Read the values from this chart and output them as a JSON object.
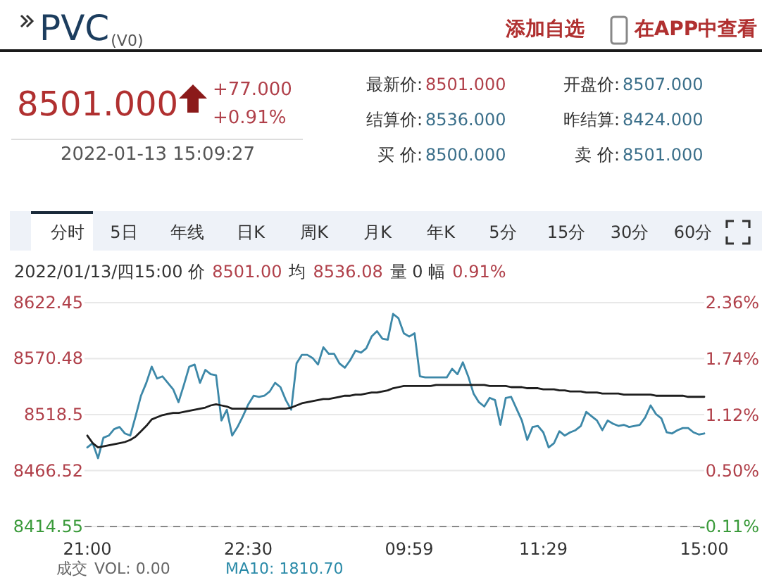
{
  "chart_data": {
    "type": "line",
    "title": "PVC",
    "subtitle": "(V0)",
    "annotations": [
      "添加自选",
      "在APP中查看",
      "8501.000",
      "+77.000",
      "+0.91%",
      "2022-01-13 15:09:27",
      "最新价:",
      "8501.000",
      "结算价:",
      "8536.000",
      "买 价:",
      "8500.000",
      "开盘价:",
      "8507.000",
      "昨结算:",
      "8424.000",
      "卖 价:",
      "8501.000",
      "分时",
      "5日",
      "年线",
      "日K",
      "周K",
      "月K",
      "年K",
      "5分",
      "15分",
      "30分",
      "60分",
      "2022/01/13/四15:00 价",
      "8501.00",
      "均",
      "8536.08",
      "量 0 幅",
      "0.91%",
      "成交",
      "VOL: 0.00",
      "MA10: 1810.70"
    ],
    "categories": [
      "21:00",
      null,
      null,
      null,
      null,
      null,
      null,
      null,
      null,
      null,
      null,
      null,
      null,
      null,
      null,
      null,
      null,
      null,
      null,
      null,
      null,
      null,
      null,
      null,
      null,
      null,
      null,
      null,
      null,
      null,
      "22:30",
      null,
      null,
      null,
      null,
      null,
      null,
      null,
      null,
      null,
      null,
      null,
      null,
      null,
      null,
      null,
      null,
      null,
      null,
      null,
      null,
      null,
      null,
      null,
      null,
      null,
      null,
      null,
      null,
      null,
      "09:59",
      null,
      null,
      null,
      null,
      null,
      null,
      null,
      null,
      null,
      null,
      null,
      null,
      null,
      null,
      null,
      null,
      null,
      null,
      null,
      null,
      null,
      null,
      null,
      null,
      "11:29",
      null,
      null,
      null,
      null,
      null,
      null,
      null,
      null,
      null,
      null,
      null,
      null,
      null,
      null,
      null,
      null,
      null,
      null,
      null,
      null,
      null,
      null,
      null,
      null,
      null,
      null,
      null,
      null,
      null,
      "15:00"
    ],
    "ylim": [
      8414.55,
      8622.45
    ],
    "yticks": [
      8414.55,
      8466.52,
      8518.5,
      8570.48,
      8622.45
    ],
    "y2lim": [
      -0.11,
      2.36
    ],
    "y2ticks": [
      {
        "value": -0.11,
        "label": "-0.11%"
      },
      {
        "value": 0.5,
        "label": "0.50%"
      },
      {
        "value": 1.12,
        "label": "1.12%"
      },
      {
        "value": 1.74,
        "label": "1.74%"
      },
      {
        "value": 2.36,
        "label": "2.36%"
      }
    ],
    "grid": "y",
    "ref_lines": [
      {
        "axis": "y",
        "value": 8414.55,
        "line_style": "dashed",
        "color": "#888888"
      }
    ],
    "series": [
      {
        "color": "#3d88a8",
        "values": [
          8488,
          8492,
          8478,
          8497,
          8499,
          8505,
          8507,
          8501,
          8499,
          8517,
          8536,
          8548,
          8563,
          8552,
          8554,
          8548,
          8542,
          8530,
          8546,
          8563,
          8565,
          8548,
          8560,
          8556,
          8555,
          8513,
          8523,
          8499,
          8507,
          8517,
          8528,
          8536,
          8535,
          8536,
          8540,
          8548,
          8544,
          8532,
          8523,
          8566,
          8574,
          8574,
          8571,
          8565,
          8581,
          8575,
          8575,
          8566,
          8562,
          8569,
          8578,
          8576,
          8580,
          8591,
          8596,
          8589,
          8588,
          8612,
          8608,
          8594,
          8591,
          8594,
          8554,
          8553,
          8553,
          8553,
          8553,
          8553,
          8561,
          8556,
          8567,
          8554,
          8538,
          8530,
          8526,
          8534,
          8532,
          8509,
          8534,
          8535,
          8524,
          8513,
          8495,
          8507,
          8508,
          8502,
          8488,
          8492,
          8503,
          8499,
          8502,
          8504,
          8508,
          8521,
          8517,
          8513,
          8504,
          8513,
          8510,
          8508,
          8509,
          8507,
          8508,
          8509,
          8516,
          8527,
          8519,
          8515,
          8502,
          8501,
          8504,
          8506,
          8506,
          8502,
          8500,
          8501
        ]
      },
      {
        "color": "#1e1e1e",
        "values": [
          8499,
          8492,
          8488,
          8489,
          8490,
          8491,
          8492,
          8493,
          8495,
          8498,
          8503,
          8508,
          8514,
          8516,
          8518,
          8519,
          8520,
          8520,
          8521,
          8522,
          8523,
          8524,
          8525,
          8527,
          8528,
          8527,
          8526,
          8524,
          8524,
          8524,
          8524,
          8524,
          8524,
          8524,
          8524,
          8524,
          8524,
          8524,
          8525,
          8527,
          8529,
          8530,
          8531,
          8532,
          8533,
          8533,
          8534,
          8535,
          8536,
          8536,
          8537,
          8537,
          8538,
          8539,
          8539,
          8540,
          8541,
          8543,
          8544,
          8545,
          8545,
          8545,
          8545,
          8545,
          8545,
          8546,
          8546,
          8546,
          8546,
          8546,
          8546,
          8546,
          8546,
          8546,
          8546,
          8545,
          8545,
          8545,
          8545,
          8544,
          8544,
          8544,
          8543,
          8543,
          8543,
          8542,
          8542,
          8542,
          8541,
          8541,
          8540,
          8540,
          8540,
          8539,
          8539,
          8539,
          8538,
          8538,
          8538,
          8538,
          8537,
          8537,
          8537,
          8537,
          8537,
          8537,
          8536,
          8536,
          8536,
          8536,
          8536,
          8536,
          8535,
          8535,
          8535,
          8535
        ]
      }
    ]
  }
}
